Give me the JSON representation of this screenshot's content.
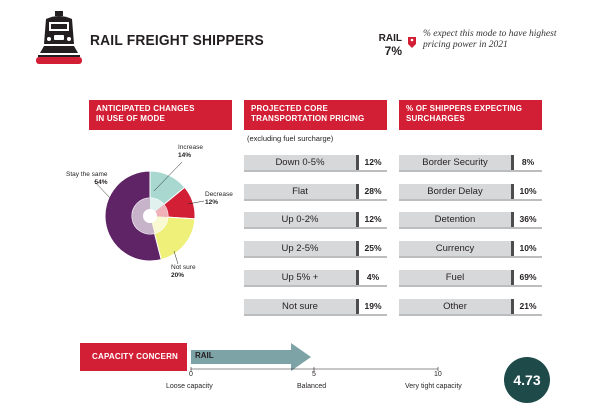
{
  "header": {
    "title": "RAIL FREIGHT SHIPPERS",
    "mode_name": "RAIL",
    "mode_pct": "7%",
    "note": "% expect this mode to have highest pricing power in 2021",
    "accent_color": "#d31f35",
    "icon": "train-icon"
  },
  "sections": {
    "mode_use": {
      "title_line1": "ANTICIPATED CHANGES",
      "title_line2": "IN USE OF MODE"
    },
    "pricing": {
      "title_line1": "PROJECTED CORE",
      "title_line2": "TRANSPORTATION PRICING",
      "note": "(excluding fuel surcharge)"
    },
    "surcharges": {
      "title_line1": "% OF SHIPPERS EXPECTING",
      "title_line2": "SURCHARGES"
    }
  },
  "capacity": {
    "title": "CAPACITY CONCERN",
    "arrow_label": "RAIL",
    "tick_0": "0",
    "tick_5": "5",
    "tick_10": "10",
    "loose": "Loose capacity",
    "balanced": "Balanced",
    "tight": "Very tight capacity",
    "score": "4.73"
  },
  "chart_data": [
    {
      "type": "pie",
      "categories": [
        "Increase",
        "Decrease",
        "Not sure",
        "Stay the same"
      ],
      "values": [
        14,
        12,
        20,
        54
      ],
      "value_labels": [
        "14%",
        "12%",
        "20%",
        "54%"
      ],
      "colors": [
        "#a8d8cf",
        "#d31f35",
        "#eef07a",
        "#5e2466"
      ]
    },
    {
      "type": "bar",
      "categories": [
        "Down 0-5%",
        "Flat",
        "Up 0-2%",
        "Up 2-5%",
        "Up 5% +",
        "Not sure"
      ],
      "values": [
        12,
        28,
        12,
        25,
        4,
        19
      ],
      "value_labels": [
        "12%",
        "28%",
        "12%",
        "25%",
        "4%",
        "19%"
      ]
    },
    {
      "type": "bar",
      "categories": [
        "Border Security",
        "Border Delay",
        "Detention",
        "Currency",
        "Fuel",
        "Other"
      ],
      "values": [
        8,
        10,
        36,
        10,
        69,
        21
      ],
      "value_labels": [
        "8%",
        "10%",
        "36%",
        "10%",
        "69%",
        "21%"
      ]
    }
  ]
}
